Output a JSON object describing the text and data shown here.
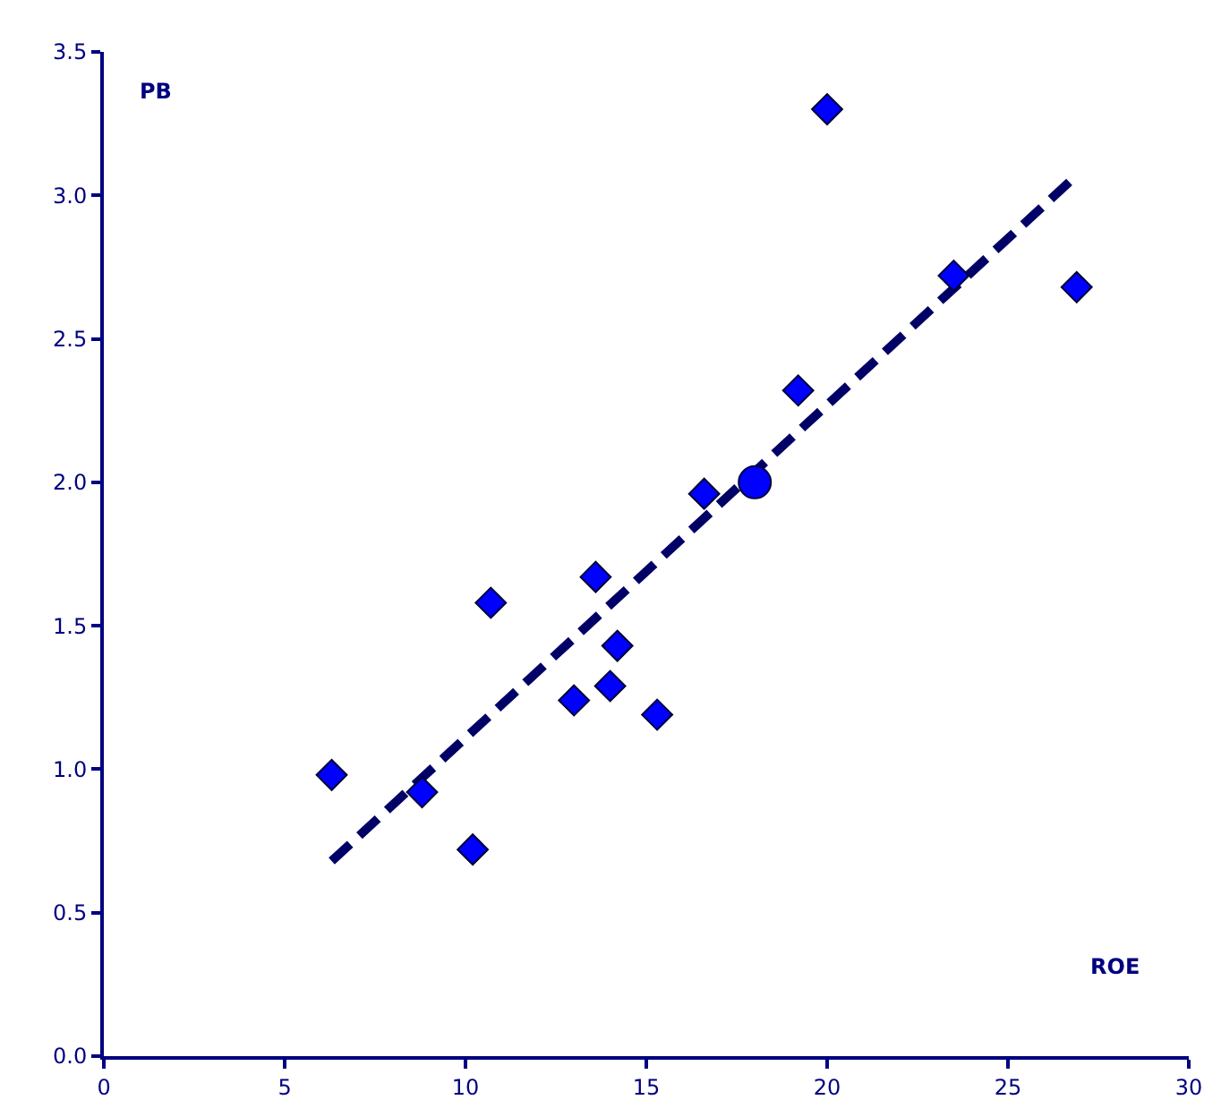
{
  "chart_data": {
    "type": "scatter",
    "xlabel": "ROE",
    "ylabel": "PB",
    "xlim": [
      0,
      30
    ],
    "xticks": [
      0,
      5,
      10,
      15,
      20,
      25,
      30
    ],
    "ylim": [
      0,
      3.5
    ],
    "yticks": [
      {
        "value": 0,
        "label": "0.0"
      },
      {
        "value": 0.5,
        "label": "0.5"
      },
      {
        "value": 1,
        "label": "1.0"
      },
      {
        "value": 1.5,
        "label": "1.5"
      },
      {
        "value": 2,
        "label": "2.0"
      },
      {
        "value": 2.5,
        "label": "2.5"
      },
      {
        "value": 3,
        "label": "3.0"
      },
      {
        "value": 3.5,
        "label": "3.5"
      }
    ],
    "series": [
      {
        "type": "line",
        "color": "#000066",
        "line_style": "dashed",
        "marker": "none",
        "x": [
          6.3,
          26.9
        ],
        "values": [
          0.68,
          3.07
        ]
      },
      {
        "color": "#0000ff",
        "marker": "diamond",
        "x": [
          6.3,
          8.8,
          10.2,
          10.7,
          13.0,
          13.6,
          14.0,
          14.2,
          15.3,
          16.6,
          19.2,
          20.0,
          23.5,
          26.9
        ],
        "values": [
          0.98,
          0.92,
          0.72,
          1.58,
          1.24,
          1.67,
          1.29,
          1.43,
          1.19,
          1.96,
          2.32,
          3.3,
          2.72,
          2.68
        ]
      },
      {
        "color": "#0000ff",
        "marker": "circle",
        "x": [
          18.0
        ],
        "values": [
          2.0
        ]
      }
    ]
  }
}
